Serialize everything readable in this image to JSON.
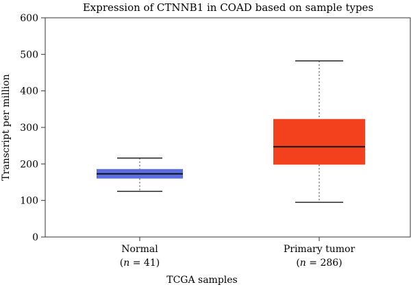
{
  "chart_data": {
    "type": "box",
    "title": "Expression of CTNNB1 in COAD based on sample types",
    "xlabel": "TCGA samples",
    "ylabel": "Transcript per million",
    "ylim": [
      0,
      600
    ],
    "yticks": [
      "0",
      "100",
      "200",
      "300",
      "400",
      "500",
      "600"
    ],
    "categories": [
      {
        "name": "Normal",
        "n_label": "(n = 41)",
        "n_italic": "n",
        "n_rest": " = 41)",
        "n_open": "("
      },
      {
        "name": "Primary tumor",
        "n_label": "(n = 286)",
        "n_italic": "n",
        "n_rest": " = 286)",
        "n_open": "("
      }
    ],
    "boxes": [
      {
        "category": "Normal",
        "whisker_low": 125,
        "q1": 160,
        "median": 173,
        "q3": 186,
        "whisker_high": 216,
        "color": "#5b6ee1"
      },
      {
        "category": "Primary tumor",
        "whisker_low": 95,
        "q1": 198,
        "median": 247,
        "q3": 323,
        "whisker_high": 482,
        "color": "#f2411c"
      }
    ],
    "grid": false
  }
}
